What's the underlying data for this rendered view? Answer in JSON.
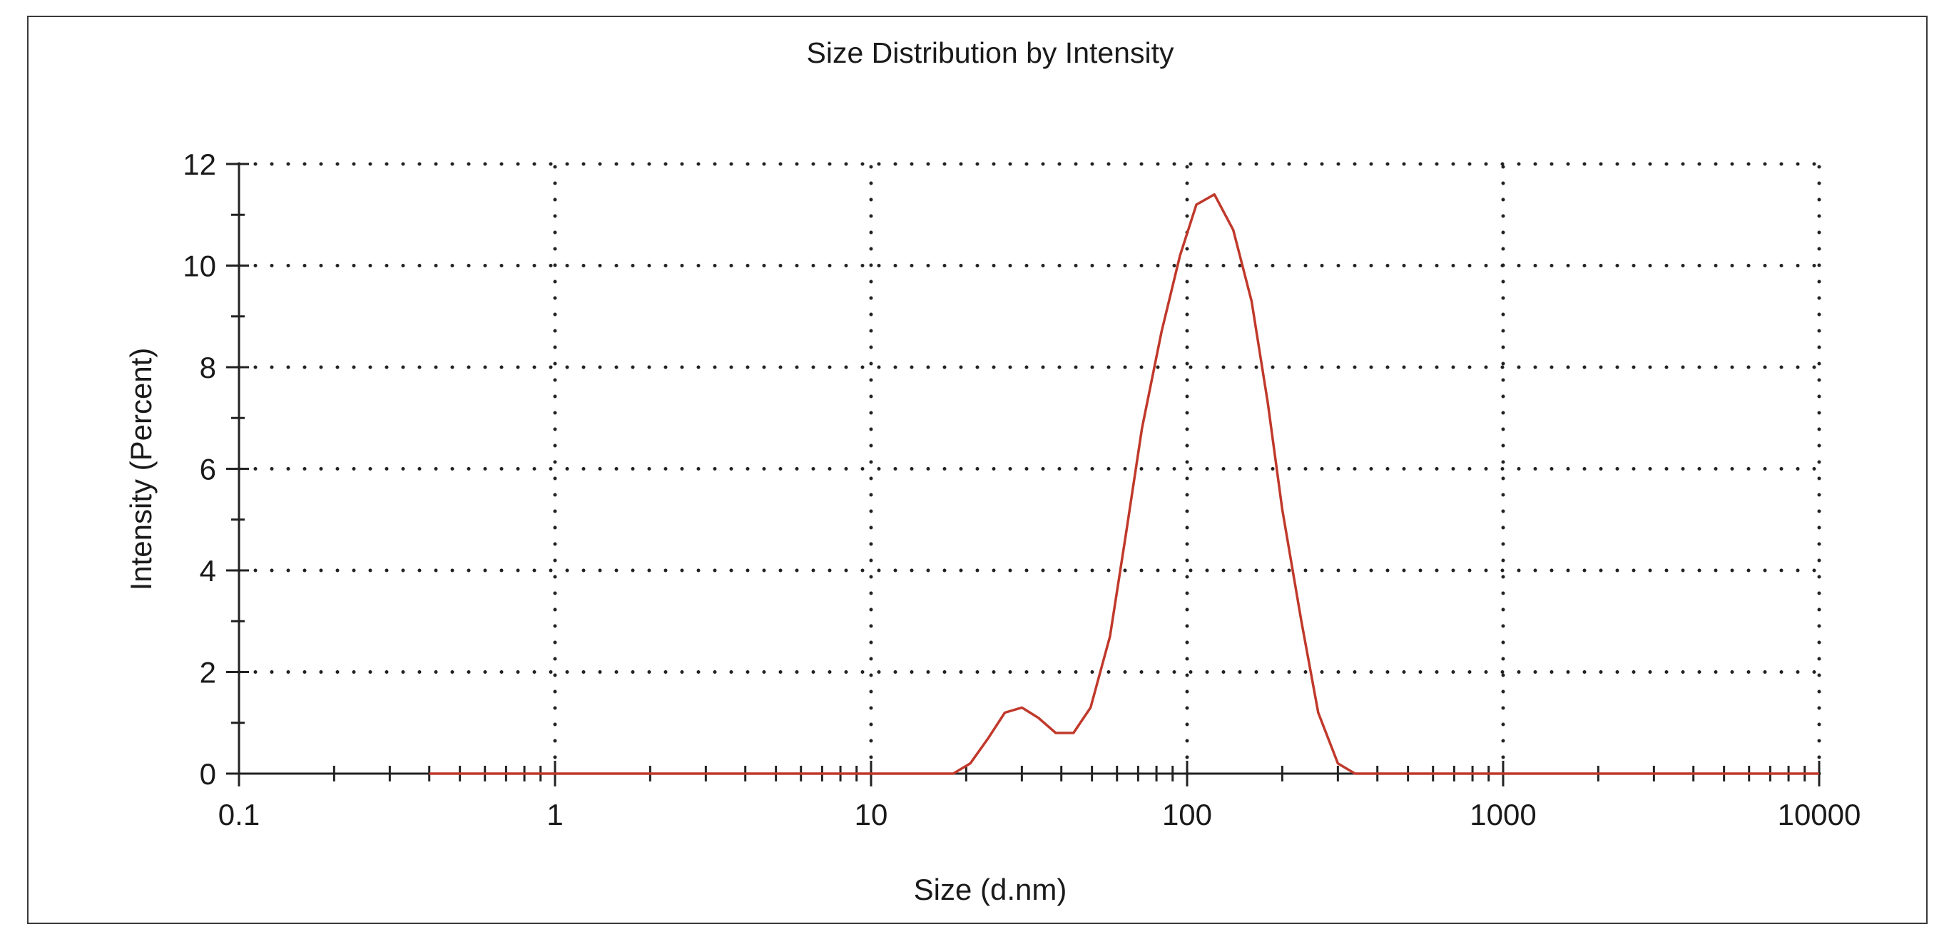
{
  "chart_data": {
    "type": "line",
    "title": "Size Distribution by Intensity",
    "xlabel": "Size (d.nm)",
    "ylabel": "Intensity (Percent)",
    "xscale": "log",
    "xlim": [
      0.1,
      10000
    ],
    "ylim": [
      0,
      12
    ],
    "x_ticks": [
      0.1,
      1,
      10,
      100,
      1000,
      10000
    ],
    "x_tick_labels": [
      "0.1",
      "1",
      "10",
      "100",
      "1000",
      "10000"
    ],
    "y_ticks": [
      0,
      2,
      4,
      6,
      8,
      10,
      12
    ],
    "y_tick_labels": [
      "0",
      "2",
      "4",
      "6",
      "8",
      "10",
      "12"
    ],
    "grid": true,
    "line_color": "#c0392b",
    "series": [
      {
        "name": "Intensity",
        "x": [
          0.4,
          1,
          5,
          10,
          15,
          18.2,
          20.6,
          23.5,
          26.5,
          30,
          33.8,
          38.4,
          43.7,
          49.5,
          57,
          64,
          72,
          83,
          95,
          107,
          122,
          140,
          160,
          180,
          200,
          230,
          260,
          300,
          340,
          380,
          420,
          470,
          520,
          600,
          1000,
          5000,
          10000
        ],
        "values": [
          0,
          0,
          0,
          0,
          0,
          0,
          0.2,
          0.7,
          1.2,
          1.3,
          1.1,
          0.8,
          0.8,
          1.3,
          2.7,
          4.7,
          6.8,
          8.7,
          10.2,
          11.2,
          11.4,
          10.7,
          9.3,
          7.3,
          5.2,
          3.0,
          1.2,
          0.2,
          0,
          0,
          0,
          0,
          0,
          0,
          0,
          0,
          0
        ]
      }
    ]
  }
}
